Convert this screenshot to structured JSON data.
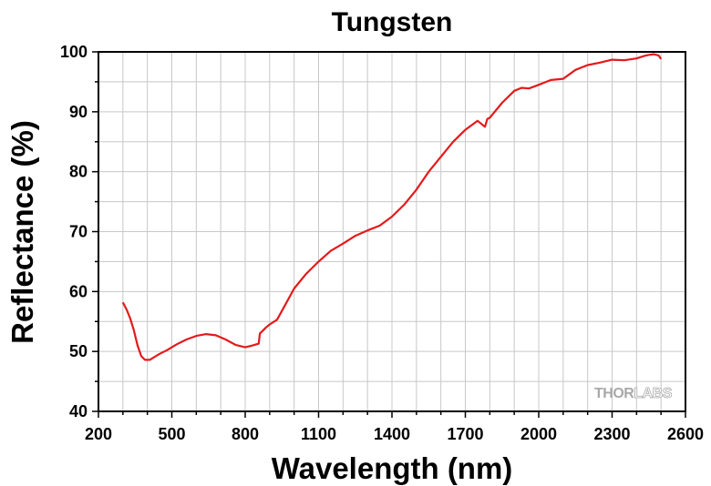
{
  "chart_data": {
    "type": "line",
    "title": "Tungsten",
    "xlabel": "Wavelength (nm)",
    "ylabel": "Reflectance (%)",
    "xlim": [
      200,
      2600
    ],
    "ylim": [
      40,
      100
    ],
    "xticks": [
      200,
      500,
      800,
      1100,
      1400,
      1700,
      2000,
      2300,
      2600
    ],
    "yticks": [
      40,
      50,
      60,
      70,
      80,
      90,
      100
    ],
    "x_minor_step": 100,
    "y_minor_step": 5,
    "grid": true,
    "line_color": "#e31a1c",
    "series": [
      {
        "x": [
          300,
          315,
          330,
          345,
          360,
          375,
          390,
          410,
          430,
          450,
          480,
          520,
          560,
          600,
          640,
          680,
          720,
          760,
          800,
          830,
          855,
          860,
          870,
          885,
          900,
          930,
          960,
          1000,
          1050,
          1100,
          1150,
          1200,
          1250,
          1300,
          1350,
          1400,
          1450,
          1500,
          1550,
          1600,
          1650,
          1700,
          1750,
          1780,
          1790,
          1800,
          1850,
          1900,
          1930,
          1960,
          2000,
          2050,
          2100,
          2150,
          2200,
          2250,
          2300,
          2350,
          2400,
          2430,
          2450,
          2470,
          2490,
          2500
        ],
        "y": [
          58.2,
          57.0,
          55.5,
          53.5,
          51.0,
          49.2,
          48.6,
          48.6,
          49.1,
          49.6,
          50.2,
          51.2,
          52.0,
          52.6,
          52.9,
          52.7,
          52.0,
          51.1,
          50.7,
          51.0,
          51.3,
          53.0,
          53.4,
          54.0,
          54.5,
          55.3,
          57.5,
          60.5,
          63.0,
          65.0,
          66.8,
          68.0,
          69.3,
          70.2,
          71.0,
          72.5,
          74.5,
          77.0,
          80.0,
          82.5,
          85.0,
          87.0,
          88.5,
          87.5,
          88.8,
          89.0,
          91.5,
          93.5,
          94.0,
          93.9,
          94.5,
          95.3,
          95.5,
          97.0,
          97.8,
          98.2,
          98.7,
          98.6,
          98.9,
          99.3,
          99.5,
          99.6,
          99.4,
          98.8
        ]
      }
    ]
  },
  "watermark": {
    "part1": "THOR",
    "part2": "LABS"
  }
}
